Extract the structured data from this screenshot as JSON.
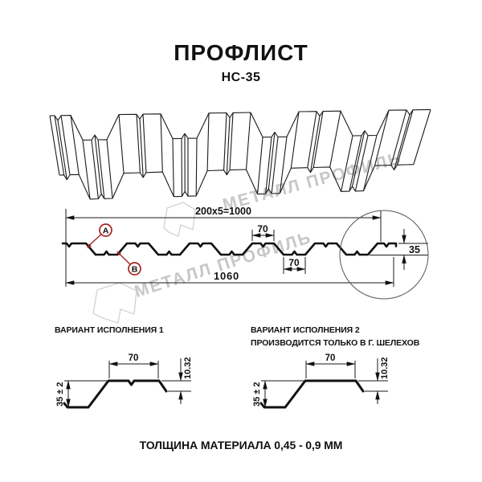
{
  "header": {
    "title": "ПРОФЛИСТ",
    "subtitle": "НС-35"
  },
  "watermark": {
    "text1": "МЕТАЛЛ ПРОФИЛЬ",
    "text2": "МЕТАЛЛ ПРОФИЛЬ",
    "color": "#c7c7c7"
  },
  "cross_section": {
    "dim_top": "200x5=1000",
    "dim_top_flange": "70",
    "dim_bottom_flange": "70",
    "dim_total_width": "1060",
    "dim_height": "35",
    "label_a": "А",
    "label_b": "В",
    "accent_color": "#a3241c",
    "line_color": "#1a1a1a"
  },
  "variants": [
    {
      "title": "ВАРИАНТ ИСПОЛНЕНИЯ 1",
      "subtitle": "",
      "dim_flange": "70",
      "dim_edge": "10.32",
      "dim_height": "35 ± 2"
    },
    {
      "title": "ВАРИАНТ ИСПОЛНЕНИЯ 2",
      "subtitle": "ПРОИЗВОДИТСЯ ТОЛЬКО В Г. ШЕЛЕХОВ",
      "dim_flange": "70",
      "dim_edge": "10.32",
      "dim_height": "35 ± 2"
    }
  ],
  "footer": {
    "text": "ТОЛЩИНА МАТЕРИАЛА 0,45 - 0,9 ММ"
  }
}
